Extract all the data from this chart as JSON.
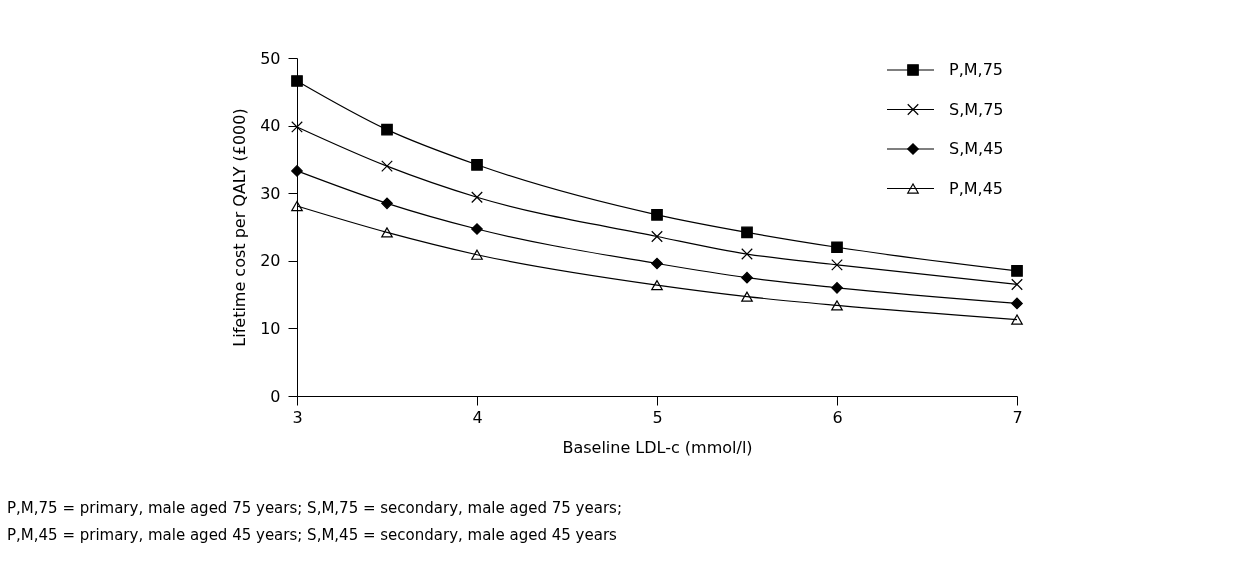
{
  "chart_data": {
    "type": "line",
    "xlabel": "Baseline LDL-c (mmol/l)",
    "ylabel": "Lifetime cost per QALY (£000)",
    "x": [
      3,
      3.5,
      4,
      5,
      5.5,
      6,
      7
    ],
    "xlim": [
      3,
      7
    ],
    "xticks": [
      3,
      4,
      5,
      6,
      7
    ],
    "ylim": [
      0,
      50
    ],
    "yticks": [
      0,
      10,
      20,
      30,
      40,
      50
    ],
    "grid": false,
    "legend": "top right",
    "line_style": "solid",
    "series": [
      {
        "name": "P,M,75",
        "color": "#000000",
        "marker": "square",
        "values": [
          46.6,
          39.4,
          34.2,
          26.8,
          24.2,
          22.0,
          18.5
        ]
      },
      {
        "name": "S,M,75",
        "color": "#000000",
        "marker": "cross",
        "values": [
          39.8,
          34.0,
          29.4,
          23.6,
          21.0,
          19.4,
          16.5
        ]
      },
      {
        "name": "S,M,45",
        "color": "#000000",
        "marker": "diamond",
        "values": [
          33.3,
          28.5,
          24.7,
          19.6,
          17.5,
          16.0,
          13.7
        ]
      },
      {
        "name": "P,M,45",
        "color": "#000000",
        "marker": "triangle",
        "values": [
          28.1,
          24.2,
          20.9,
          16.4,
          14.7,
          13.4,
          11.3
        ]
      }
    ],
    "annotations": [
      "P,M,75 = primary, male aged 75 years; S,M,75 = secondary, male aged 75 years;",
      "P,M,45 = primary, male aged 45 years; S,M,45 = secondary, male aged 45 years"
    ]
  }
}
